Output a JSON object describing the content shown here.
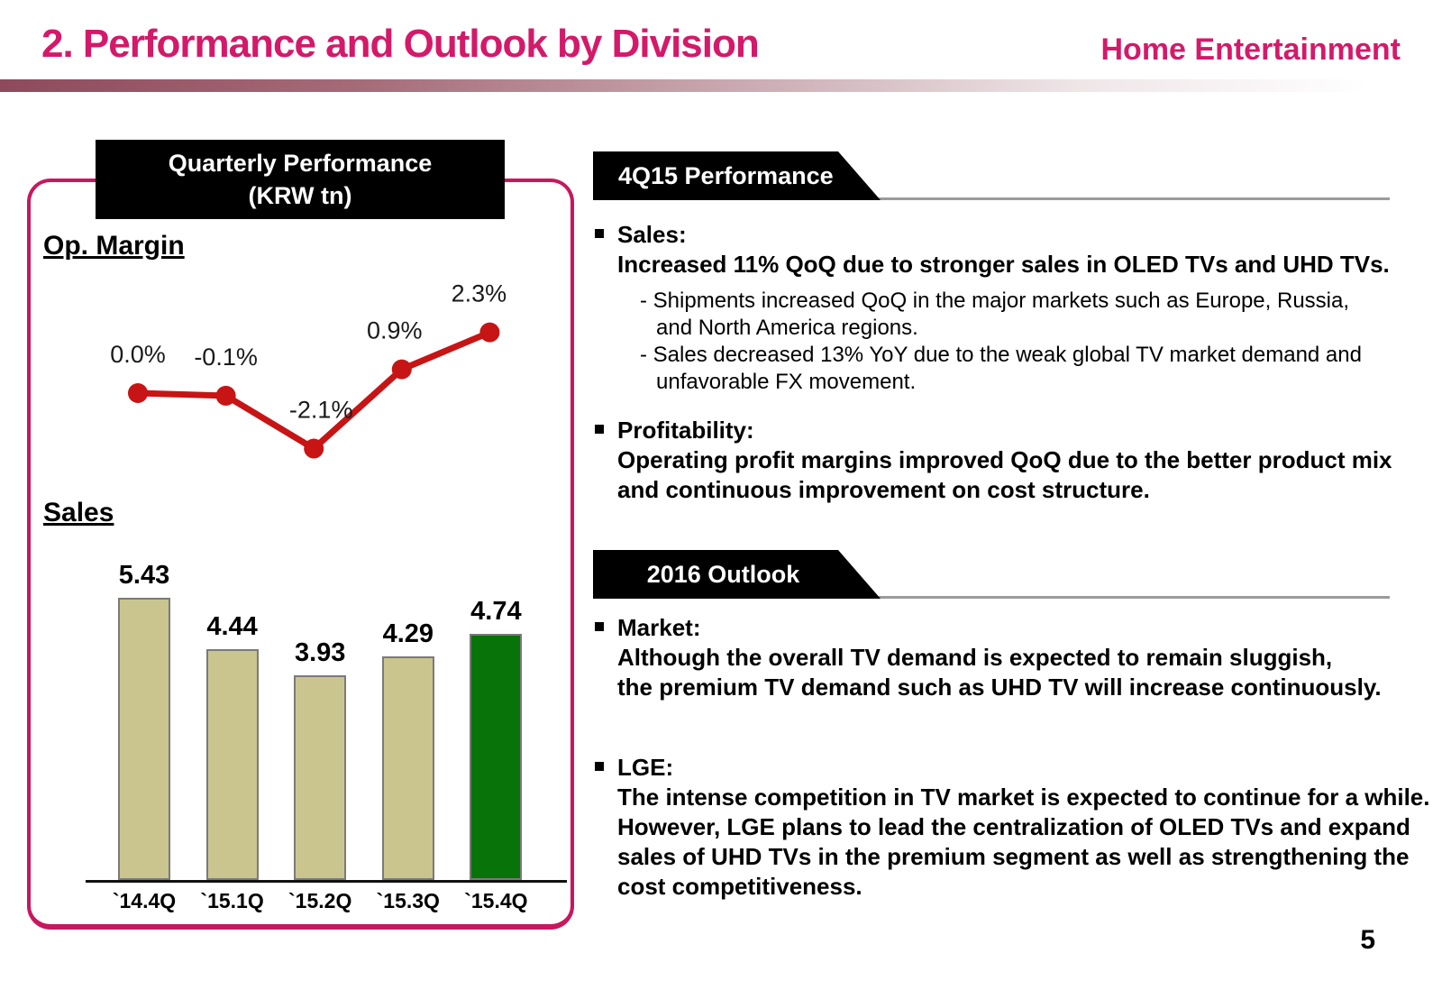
{
  "header": {
    "title": "2. Performance and Outlook by Division",
    "division": "Home Entertainment"
  },
  "left_panel": {
    "box_title_line1": "Quarterly Performance",
    "box_title_line2": "(KRW tn)",
    "op_margin_label": "Op. Margin",
    "sales_label": "Sales"
  },
  "chart_data": [
    {
      "type": "line",
      "name": "op-margin",
      "title": "Op. Margin",
      "unit": "%",
      "categories": [
        "`14.4Q",
        "`15.1Q",
        "`15.2Q",
        "`15.3Q",
        "`15.4Q"
      ],
      "values": [
        0.0,
        -0.1,
        -2.1,
        0.9,
        2.3
      ],
      "labels": [
        "0.0%",
        "-0.1%",
        "-2.1%",
        "0.9%",
        "2.3%"
      ],
      "line_color": "#c71414",
      "grid": false,
      "axes_visible": false
    },
    {
      "type": "bar",
      "name": "sales",
      "title": "Sales",
      "unit": "KRW tn",
      "categories": [
        "`14.4Q",
        "`15.1Q",
        "`15.2Q",
        "`15.3Q",
        "`15.4Q"
      ],
      "values": [
        5.43,
        4.44,
        3.93,
        4.29,
        4.74
      ],
      "labels": [
        "5.43",
        "4.44",
        "3.93",
        "4.29",
        "4.74"
      ],
      "bar_colors": [
        "#cac58f",
        "#cac58f",
        "#cac58f",
        "#cac58f",
        "#087308"
      ],
      "bar_border_color": "#7a7a7a",
      "grid": false,
      "baseline_visible": true
    }
  ],
  "sections": [
    {
      "banner": "4Q15 Performance",
      "bullets": [
        {
          "heading": "Sales:",
          "body": [
            "Increased 11% QoQ due to stronger sales in OLED TVs and UHD TVs."
          ],
          "subs": [
            "- Shipments increased QoQ in the major markets such as Europe, Russia,",
            "and North America regions.",
            "- Sales decreased 13% YoY due to the weak global TV market demand and",
            "unfavorable FX movement."
          ]
        },
        {
          "heading": "Profitability:",
          "body": [
            "Operating profit margins improved QoQ due to the better product mix",
            "and continuous improvement on cost structure."
          ],
          "subs": []
        }
      ]
    },
    {
      "banner": "2016 Outlook",
      "bullets": [
        {
          "heading": "Market:",
          "body": [
            "Although the overall TV demand is expected to remain sluggish,",
            "the premium TV demand such as UHD TV will increase continuously."
          ],
          "subs": []
        },
        {
          "heading": "LGE:",
          "body": [
            "The intense competition in TV market is expected to continue for a while.",
            "However, LGE plans to lead the centralization of OLED TVs and expand",
            "sales of UHD TVs in the premium segment as well as strengthening the",
            "cost competitiveness."
          ],
          "subs": []
        }
      ]
    }
  ],
  "colors": {
    "accent_pink": "#d4196a",
    "panel_border": "#c8175e",
    "banner_black": "#000000",
    "line_red": "#c71414",
    "bar_tan": "#cac58f",
    "bar_green": "#087308",
    "rule_gray": "#9b9b9b"
  },
  "page_number": "5"
}
